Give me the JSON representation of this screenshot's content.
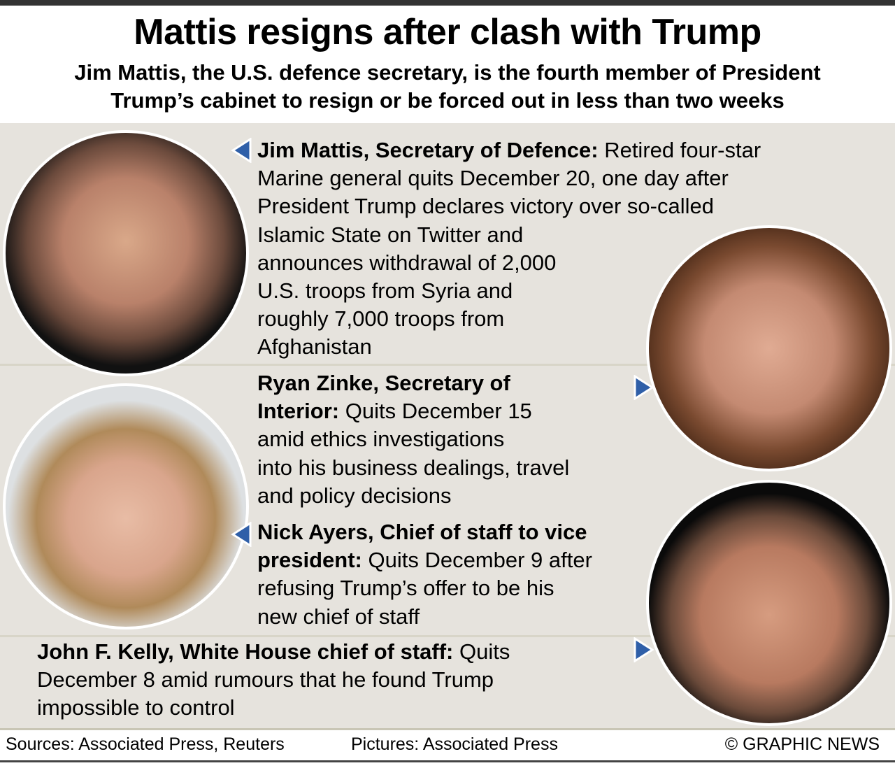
{
  "title": "Mattis resigns after clash with Trump",
  "subtitle": [
    "Jim Mattis, the U.S. defence secretary, is the fourth member of President",
    "Trump’s cabinet to resign or be forced out in less than two weeks"
  ],
  "entries": [
    {
      "name": "Jim Mattis, Secretary of Defence:",
      "lines": [
        " Retired four-star",
        "Marine general quits December 20, one day after",
        "President Trump declares victory over so-called",
        "Islamic State on Twitter and",
        "announces withdrawal of 2,000",
        "U.S. troops from Syria and",
        "roughly 7,000 troops from",
        "Afghanistan"
      ]
    },
    {
      "name": [
        "Ryan Zinke, Secretary of",
        "Interior:"
      ],
      "lines": [
        " Quits December 15",
        "amid ethics investigations",
        "into his business dealings, travel",
        "and policy decisions"
      ]
    },
    {
      "name": [
        "Nick Ayers, Chief of staff to vice",
        "president:"
      ],
      "lines": [
        " Quits December 9 after",
        "refusing Trump’s offer to be his",
        "new chief of staff"
      ]
    },
    {
      "name": "John F. Kelly, White House chief of staff:",
      "lines": [
        " Quits",
        "December 8 amid rumours that he found Trump",
        "impossible to control"
      ]
    }
  ],
  "footer": {
    "sources": "Sources: Associated Press, Reuters",
    "pictures": "Pictures: Associated Press",
    "credit": "© GRAPHIC NEWS"
  },
  "colors": {
    "panel": "#e6e3dd",
    "arrow": "#2f5fa8",
    "divider": "#c9c6b5"
  }
}
